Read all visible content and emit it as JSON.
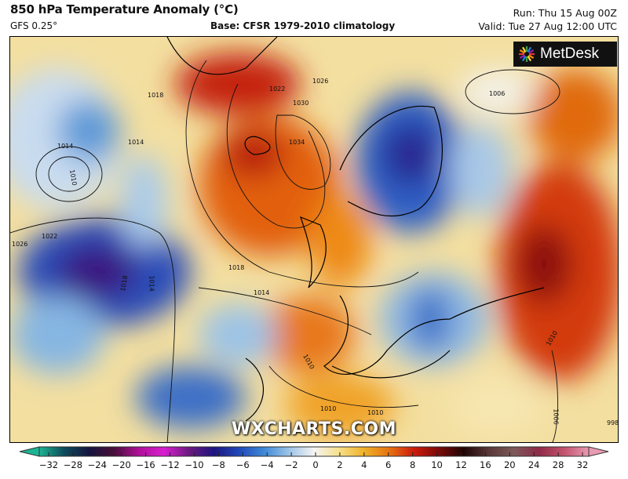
{
  "header": {
    "title": "850 hPa Temperature Anomaly (°C)",
    "model": "GFS 0.25°",
    "base": "Base: CFSR 1979-2010 climatology",
    "run": "Run: Thu 15 Aug 00Z",
    "valid": "Valid: Tue 27 Aug 12:00 UTC"
  },
  "logo": {
    "text": "MetDesk",
    "icon": "metdesk-burst-icon"
  },
  "watermark": "WXCHARTS.COM",
  "isobar_labels": [
    "1014",
    "1010",
    "1014",
    "1018",
    "1022",
    "1026",
    "1030",
    "1034",
    "1026",
    "1022",
    "1018",
    "1014",
    "1006",
    "1010",
    "1018",
    "1014",
    "1010",
    "1010",
    "1010",
    "1006",
    "998"
  ],
  "colorbar": {
    "labels": [
      "−32",
      "−28",
      "−24",
      "−20",
      "−16",
      "−12",
      "−10",
      "−8",
      "−6",
      "−4",
      "−2",
      "0",
      "2",
      "4",
      "6",
      "8",
      "10",
      "12",
      "16",
      "20",
      "24",
      "28",
      "32"
    ],
    "colors": [
      "#1db494",
      "#0e4a5a",
      "#15153e",
      "#4a0f3a",
      "#b0109a",
      "#d81fd0",
      "#6b1a80",
      "#1d1580",
      "#2048b8",
      "#3f88d6",
      "#9cc4e6",
      "#f4f4f4",
      "#f6e08a",
      "#f0b12a",
      "#e77312",
      "#cc1c0c",
      "#7a0a0a",
      "#1e0404",
      "#5a3838",
      "#7c5a5a",
      "#8f2a48",
      "#c2526e",
      "#e89ab2"
    ]
  }
}
